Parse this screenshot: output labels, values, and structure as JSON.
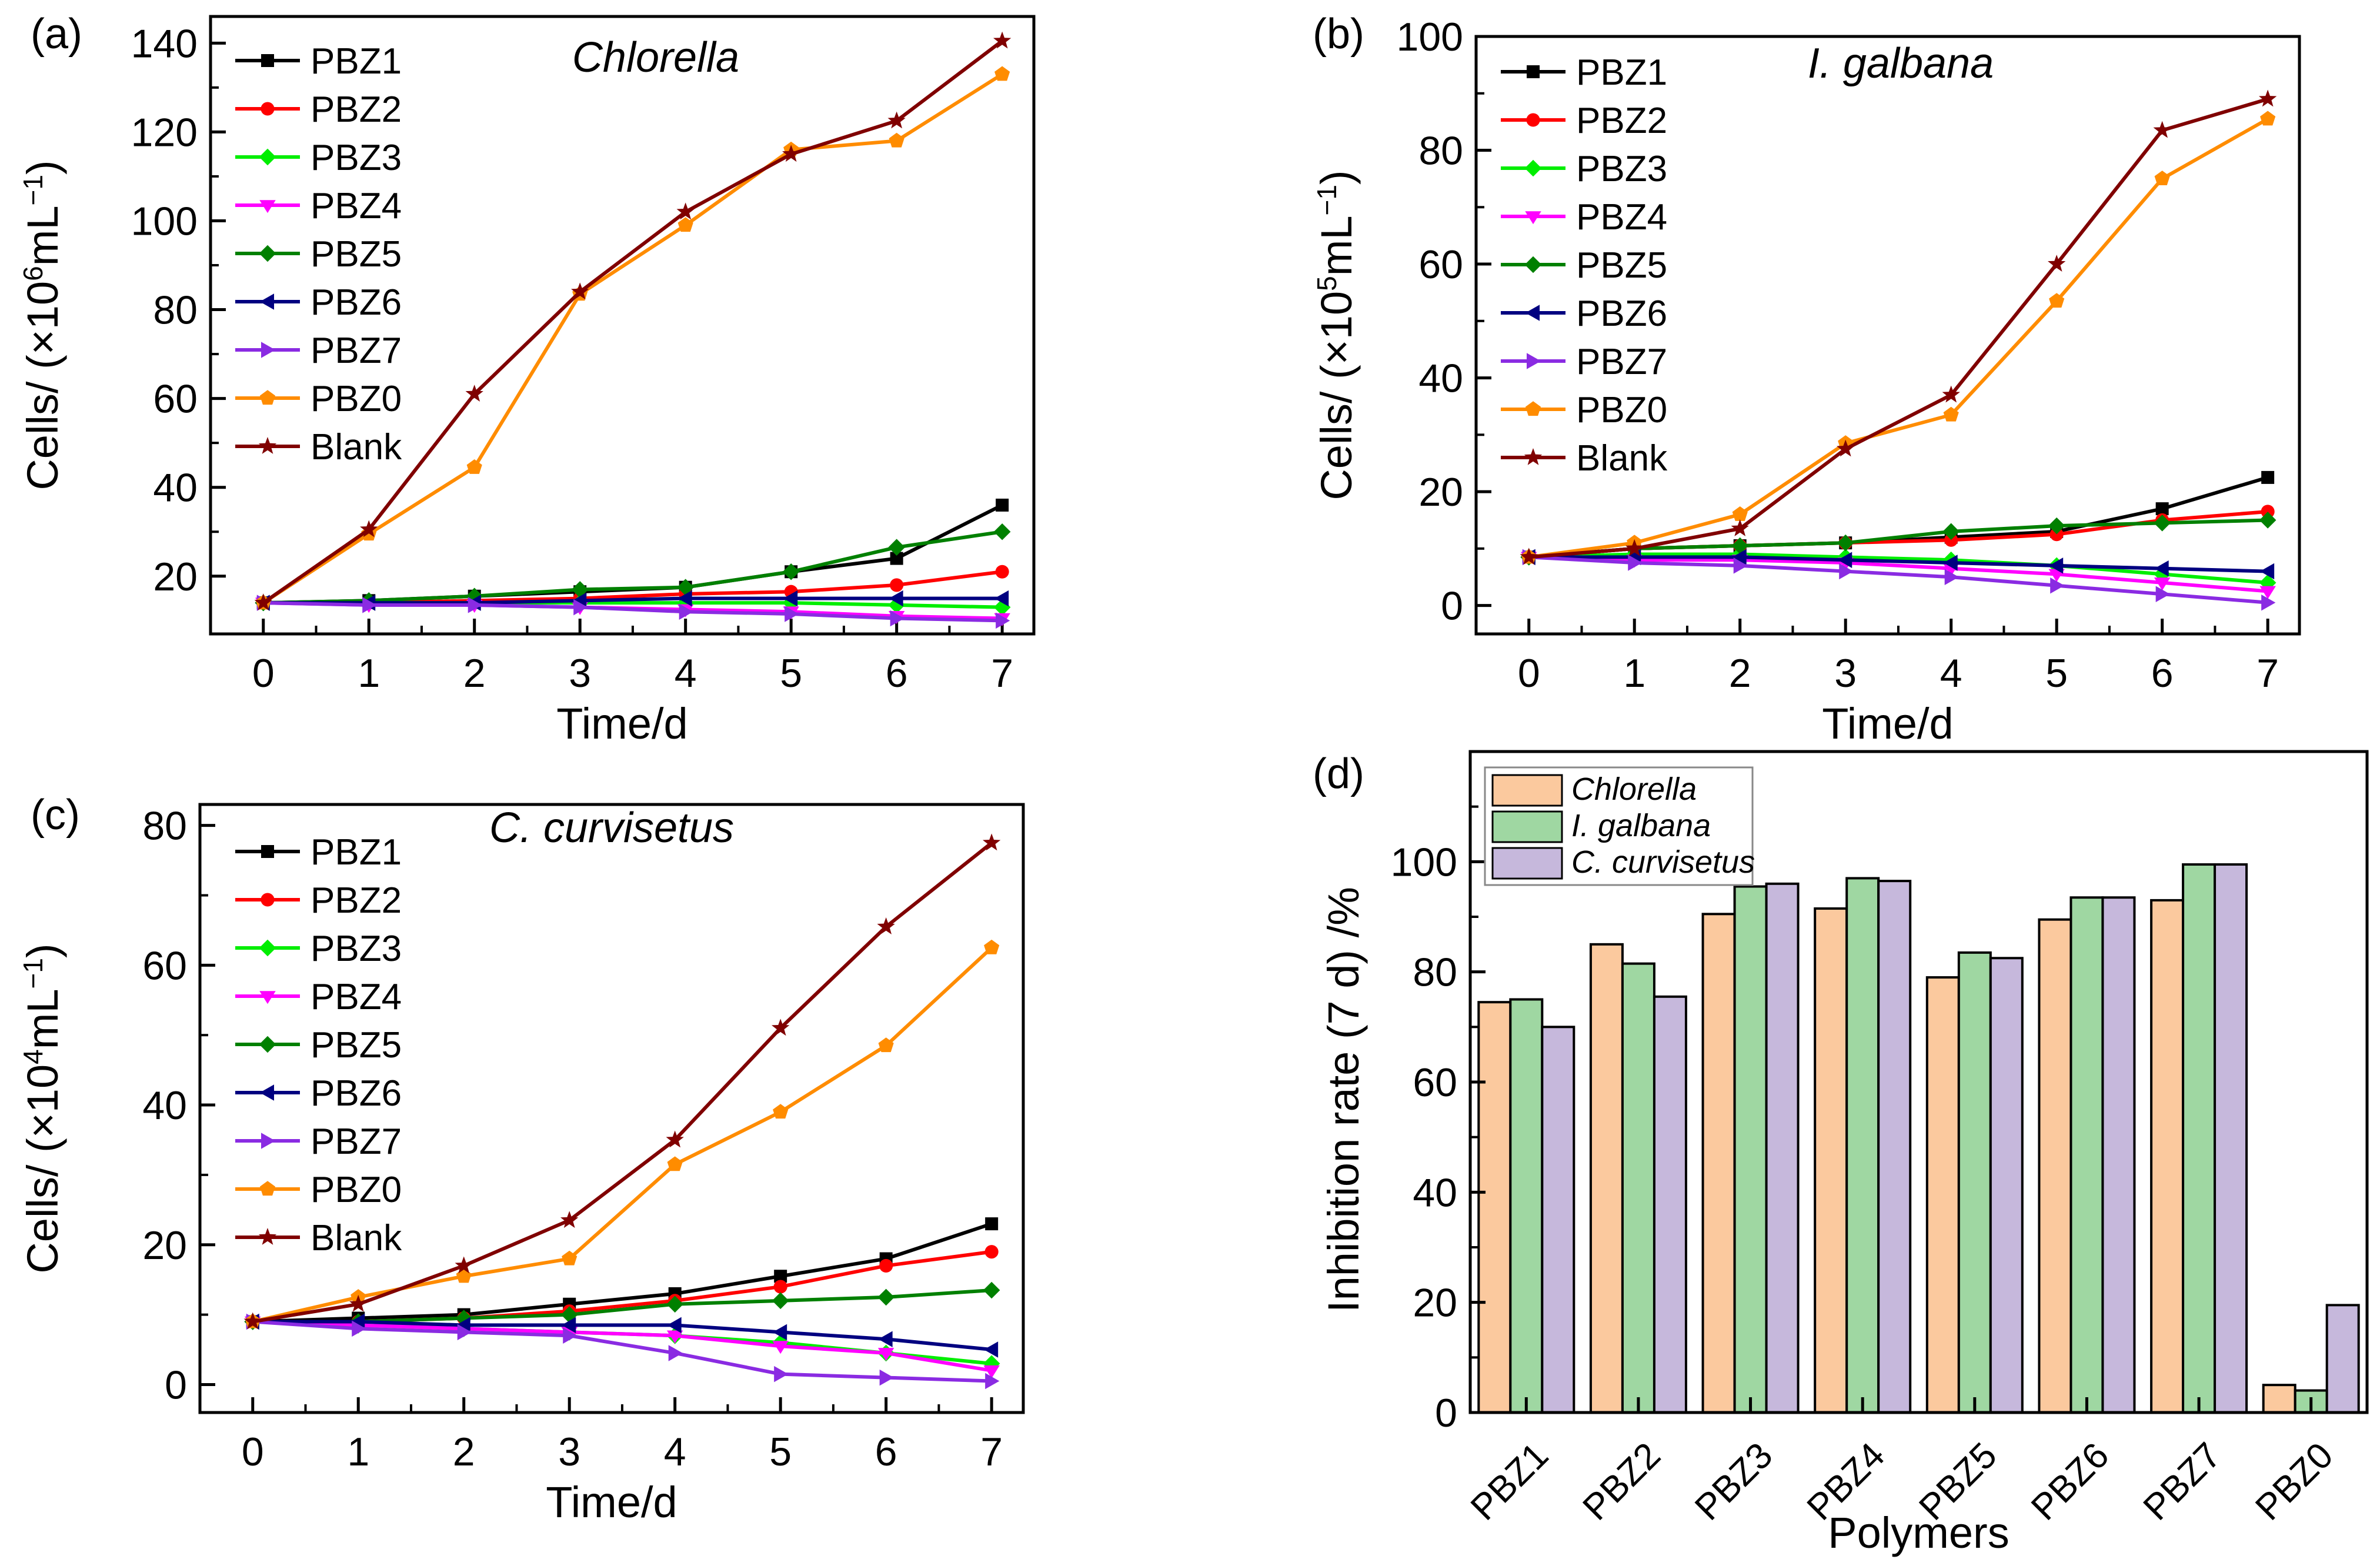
{
  "colors": {
    "PBZ1": "#000000",
    "PBZ2": "#ff0000",
    "PBZ3": "#00ee00",
    "PBZ4": "#ff00ff",
    "PBZ5": "#008000",
    "PBZ6": "#000080",
    "PBZ7": "#8a2be2",
    "PBZ0": "#ff8c00",
    "Blank": "#800000",
    "bar_chlorella": "#fbc99e",
    "bar_igalbana": "#9fd7a2",
    "bar_ccurvisetus": "#c6b8dc"
  },
  "chart_data": [
    {
      "type": "line",
      "panel_label": "(a)",
      "title": "Chlorella",
      "xlabel": "Time/d",
      "ylabel_main": "Cells/ (×10",
      "ylabel_sup": "6",
      "ylabel_mid": "mL",
      "ylabel_sup2": "−1",
      "ylabel_end": ")",
      "xlim": [
        -0.5,
        7.3
      ],
      "ylim": [
        7,
        146
      ],
      "x": [
        0,
        1,
        2,
        3,
        4,
        5,
        6,
        7
      ],
      "xticks": [
        "0",
        "1",
        "2",
        "3",
        "4",
        "5",
        "6",
        "7"
      ],
      "yticks": [
        20,
        40,
        60,
        80,
        100,
        120,
        140
      ],
      "series": [
        {
          "name": "PBZ1",
          "marker": "square",
          "values": [
            14,
            14.5,
            15.5,
            16.5,
            17.5,
            21,
            24,
            36
          ]
        },
        {
          "name": "PBZ2",
          "marker": "circle",
          "values": [
            14,
            14,
            14.5,
            15,
            16,
            16.5,
            18,
            21
          ]
        },
        {
          "name": "PBZ3",
          "marker": "diamond",
          "values": [
            14,
            14,
            14,
            14,
            14,
            14,
            13.5,
            13
          ]
        },
        {
          "name": "PBZ4",
          "marker": "tri-down",
          "values": [
            14,
            13.5,
            13.5,
            13,
            12.5,
            12,
            11,
            10.5
          ]
        },
        {
          "name": "PBZ5",
          "marker": "diamond",
          "values": [
            14,
            14.5,
            15.5,
            17,
            17.5,
            21,
            26.5,
            30
          ]
        },
        {
          "name": "PBZ6",
          "marker": "tri-left",
          "values": [
            14,
            14,
            14,
            14.5,
            15,
            15,
            15,
            15
          ]
        },
        {
          "name": "PBZ7",
          "marker": "tri-right",
          "values": [
            14,
            13.5,
            13.5,
            13,
            12,
            11.5,
            10.5,
            10
          ]
        },
        {
          "name": "PBZ0",
          "marker": "pentagon",
          "values": [
            14,
            29.5,
            44.5,
            83.5,
            99,
            116,
            118,
            133
          ]
        },
        {
          "name": "Blank",
          "marker": "star",
          "values": [
            14,
            30.5,
            61,
            84,
            102,
            115,
            122.5,
            140.5
          ]
        }
      ]
    },
    {
      "type": "line",
      "panel_label": "(b)",
      "title": "I. galbana",
      "xlabel": "Time/d",
      "ylabel_main": "Cells/ (×10",
      "ylabel_sup": "5",
      "ylabel_mid": "mL",
      "ylabel_sup2": "−1",
      "ylabel_end": ")",
      "xlim": [
        -0.5,
        7.3
      ],
      "ylim": [
        -5,
        100
      ],
      "x": [
        0,
        1,
        2,
        3,
        4,
        5,
        6,
        7
      ],
      "xticks": [
        "0",
        "1",
        "2",
        "3",
        "4",
        "5",
        "6",
        "7"
      ],
      "yticks": [
        0,
        20,
        40,
        60,
        80,
        100
      ],
      "series": [
        {
          "name": "PBZ1",
          "marker": "square",
          "values": [
            8.5,
            10,
            10.5,
            11,
            12,
            13,
            17,
            22.5
          ]
        },
        {
          "name": "PBZ2",
          "marker": "circle",
          "values": [
            8.5,
            10,
            10.5,
            11,
            11.5,
            12.5,
            15,
            16.5
          ]
        },
        {
          "name": "PBZ3",
          "marker": "diamond",
          "values": [
            8.5,
            9,
            9,
            8.5,
            8,
            7,
            5.5,
            4
          ]
        },
        {
          "name": "PBZ4",
          "marker": "tri-down",
          "values": [
            8.5,
            8,
            8,
            7.5,
            6.5,
            5.5,
            4,
            2.5
          ]
        },
        {
          "name": "PBZ5",
          "marker": "diamond",
          "values": [
            8.5,
            10,
            10.5,
            11,
            13,
            14,
            14.5,
            15
          ]
        },
        {
          "name": "PBZ6",
          "marker": "tri-left",
          "values": [
            8.5,
            8.5,
            8.5,
            8,
            7.5,
            7,
            6.5,
            6
          ]
        },
        {
          "name": "PBZ7",
          "marker": "tri-right",
          "values": [
            8.5,
            7.5,
            7,
            6,
            5,
            3.5,
            2,
            0.5
          ]
        },
        {
          "name": "PBZ0",
          "marker": "pentagon",
          "values": [
            8.5,
            11,
            16,
            28.5,
            33.5,
            53.5,
            75,
            85.5
          ]
        },
        {
          "name": "Blank",
          "marker": "star",
          "values": [
            8.5,
            10,
            13.5,
            27.5,
            37,
            60,
            83.5,
            89
          ]
        }
      ]
    },
    {
      "type": "line",
      "panel_label": "(c)",
      "title": "C. curvisetus",
      "xlabel": "Time/d",
      "ylabel_main": "Cells/ (×10",
      "ylabel_sup": "4",
      "ylabel_mid": "mL",
      "ylabel_sup2": "−1",
      "ylabel_end": ")",
      "xlim": [
        -0.5,
        7.3
      ],
      "ylim": [
        -4,
        83
      ],
      "x": [
        0,
        1,
        2,
        3,
        4,
        5,
        6,
        7
      ],
      "xticks": [
        "0",
        "1",
        "2",
        "3",
        "4",
        "5",
        "6",
        "7"
      ],
      "yticks": [
        0,
        20,
        40,
        60,
        80
      ],
      "series": [
        {
          "name": "PBZ1",
          "marker": "square",
          "values": [
            9,
            9.5,
            10,
            11.5,
            13,
            15.5,
            18,
            23
          ]
        },
        {
          "name": "PBZ2",
          "marker": "circle",
          "values": [
            9,
            9,
            9.5,
            10.5,
            12,
            14,
            17,
            19
          ]
        },
        {
          "name": "PBZ3",
          "marker": "diamond",
          "values": [
            9,
            8.5,
            8,
            7.5,
            7,
            6,
            4.5,
            3
          ]
        },
        {
          "name": "PBZ4",
          "marker": "tri-down",
          "values": [
            9,
            8.5,
            8,
            7.5,
            7,
            5.5,
            4.5,
            2
          ]
        },
        {
          "name": "PBZ5",
          "marker": "diamond",
          "values": [
            9,
            9,
            9.5,
            10,
            11.5,
            12,
            12.5,
            13.5
          ]
        },
        {
          "name": "PBZ6",
          "marker": "tri-left",
          "values": [
            9,
            9,
            8.5,
            8.5,
            8.5,
            7.5,
            6.5,
            5
          ]
        },
        {
          "name": "PBZ7",
          "marker": "tri-right",
          "values": [
            9,
            8,
            7.5,
            7,
            4.5,
            1.5,
            1,
            0.5
          ]
        },
        {
          "name": "PBZ0",
          "marker": "pentagon",
          "values": [
            9,
            12.5,
            15.5,
            18,
            31.5,
            39,
            48.5,
            62.5
          ]
        },
        {
          "name": "Blank",
          "marker": "star",
          "values": [
            9,
            11.5,
            17,
            23.5,
            35,
            51,
            65.5,
            77.5
          ]
        }
      ]
    },
    {
      "type": "bar",
      "panel_label": "(d)",
      "xlabel": "Polymers",
      "ylabel": "Inhibition rate (7 d) /%",
      "ylim": [
        0,
        120
      ],
      "yticks": [
        0,
        20,
        40,
        60,
        80,
        100
      ],
      "categories": [
        "PBZ1",
        "PBZ2",
        "PBZ3",
        "PBZ4",
        "PBZ5",
        "PBZ6",
        "PBZ7",
        "PBZ0"
      ],
      "series": [
        {
          "name": "Chlorella",
          "values": [
            74.5,
            85,
            90.5,
            91.5,
            79,
            89.5,
            93,
            5
          ]
        },
        {
          "name": "I. galbana",
          "values": [
            75,
            81.5,
            95.5,
            97,
            83.5,
            93.5,
            99.5,
            4
          ]
        },
        {
          "name": "C. curvisetus",
          "values": [
            70,
            75.5,
            96,
            96.5,
            82.5,
            93.5,
            99.5,
            19.5
          ]
        }
      ]
    }
  ]
}
